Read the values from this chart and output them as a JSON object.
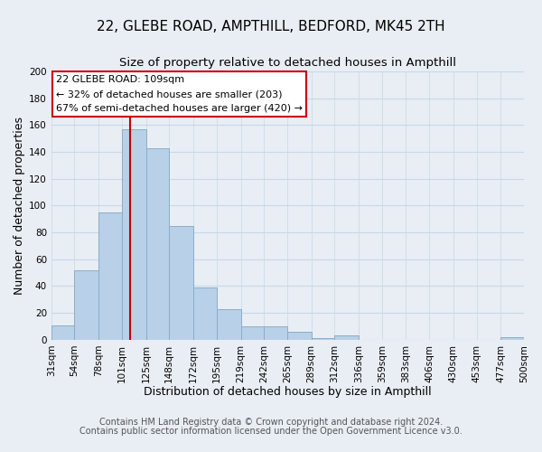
{
  "title": "22, GLEBE ROAD, AMPTHILL, BEDFORD, MK45 2TH",
  "subtitle": "Size of property relative to detached houses in Ampthill",
  "xlabel": "Distribution of detached houses by size in Ampthill",
  "ylabel": "Number of detached properties",
  "bin_edges": [
    31,
    54,
    78,
    101,
    125,
    148,
    172,
    195,
    219,
    242,
    265,
    289,
    312,
    336,
    359,
    383,
    406,
    430,
    453,
    477,
    500
  ],
  "bar_heights": [
    11,
    52,
    95,
    157,
    143,
    85,
    39,
    23,
    10,
    10,
    6,
    1,
    3,
    0,
    0,
    0,
    0,
    0,
    0,
    2
  ],
  "bar_color": "#b8d0e8",
  "bar_edge_color": "#8aaec8",
  "ylim": [
    0,
    200
  ],
  "yticks": [
    0,
    20,
    40,
    60,
    80,
    100,
    120,
    140,
    160,
    180,
    200
  ],
  "x_tick_labels": [
    "31sqm",
    "54sqm",
    "78sqm",
    "101sqm",
    "125sqm",
    "148sqm",
    "172sqm",
    "195sqm",
    "219sqm",
    "242sqm",
    "265sqm",
    "289sqm",
    "312sqm",
    "336sqm",
    "359sqm",
    "383sqm",
    "406sqm",
    "430sqm",
    "453sqm",
    "477sqm",
    "500sqm"
  ],
  "vline_x": 109,
  "vline_color": "#cc0000",
  "ann_line1": "22 GLEBE ROAD: 109sqm",
  "ann_line2": "← 32% of detached houses are smaller (203)",
  "ann_line3": "67% of semi-detached houses are larger (420) →",
  "footer_line1": "Contains HM Land Registry data © Crown copyright and database right 2024.",
  "footer_line2": "Contains public sector information licensed under the Open Government Licence v3.0.",
  "background_color": "#e8eef4",
  "grid_color": "#c8d8e8",
  "title_fontsize": 11,
  "subtitle_fontsize": 9.5,
  "axis_label_fontsize": 9,
  "tick_fontsize": 7.5,
  "ann_fontsize": 8,
  "footer_fontsize": 7
}
